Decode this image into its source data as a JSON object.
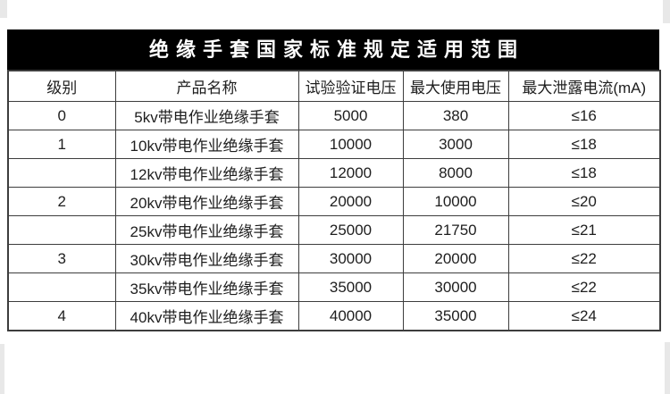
{
  "colors": {
    "page_bg": "#ffffff",
    "edge_strip": "#e8e8e8",
    "title_bg": "#000000",
    "title_fg": "#ffffff",
    "table_border": "#3d3d3d",
    "text": "#1e1e1e"
  },
  "title_bar": {
    "text": "绝缘手套国家标准规定适用范围"
  },
  "table": {
    "columns": [
      "级别",
      "产品名称",
      "试验验证电压",
      "最大使用电压",
      "最大泄露电流(mA)"
    ],
    "rows": [
      [
        "0",
        "5kv带电作业绝缘手套",
        "5000",
        "380",
        "≤16"
      ],
      [
        "1",
        "10kv带电作业绝缘手套",
        "10000",
        "3000",
        "≤18"
      ],
      [
        "",
        "12kv带电作业绝缘手套",
        "12000",
        "8000",
        "≤18"
      ],
      [
        "2",
        "20kv带电作业绝缘手套",
        "20000",
        "10000",
        "≤20"
      ],
      [
        "",
        "25kv带电作业绝缘手套",
        "25000",
        "21750",
        "≤21"
      ],
      [
        "3",
        "30kv带电作业绝缘手套",
        "30000",
        "20000",
        "≤22"
      ],
      [
        "",
        "35kv带电作业绝缘手套",
        "35000",
        "30000",
        "≤22"
      ],
      [
        "4",
        "40kv带电作业绝缘手套",
        "40000",
        "35000",
        "≤24"
      ]
    ]
  }
}
